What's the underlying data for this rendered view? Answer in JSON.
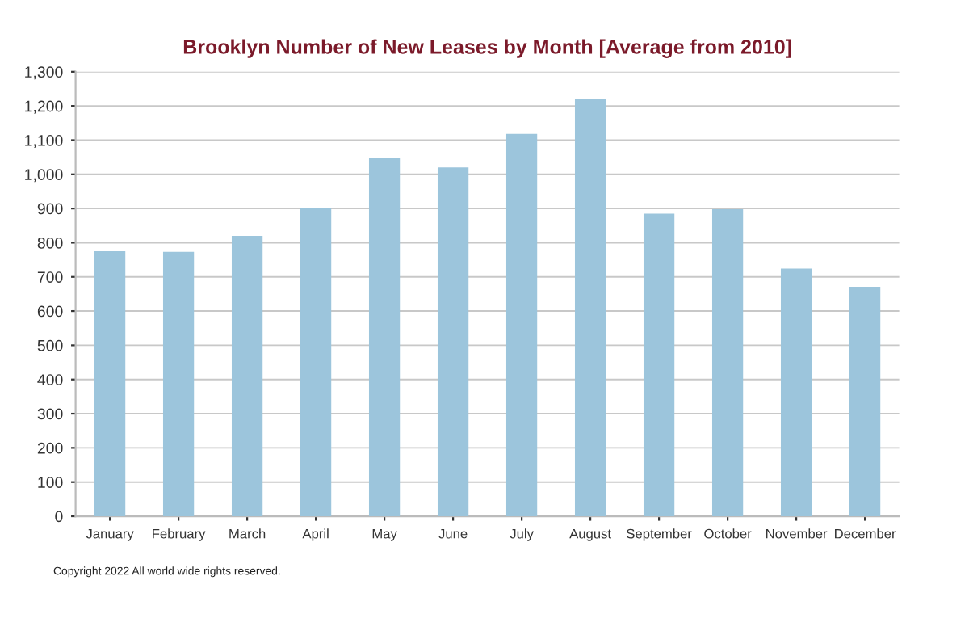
{
  "chart_data": {
    "type": "bar",
    "title": "Brooklyn Number of New Leases by Month [Average from 2010]",
    "categories": [
      "January",
      "February",
      "March",
      "April",
      "May",
      "June",
      "July",
      "August",
      "September",
      "October",
      "November",
      "December"
    ],
    "values": [
      775,
      773,
      820,
      902,
      1048,
      1020,
      1118,
      1220,
      885,
      898,
      724,
      671
    ],
    "color": "#9cc5dc",
    "ylim": [
      0,
      1300
    ],
    "yticks": [
      0,
      {
        "value": 100,
        "label": "100"
      },
      200,
      300,
      400,
      500,
      600,
      700,
      800,
      900,
      {
        "value": 1000,
        "label": "1,000"
      },
      {
        "value": 1100,
        "label": "1,100"
      },
      {
        "value": 1200,
        "label": "1,200"
      },
      {
        "value": 1300,
        "label": "1,300"
      }
    ],
    "grid": "y",
    "annotations": [
      "Copyright 2022 All world wide rights reserved."
    ]
  }
}
